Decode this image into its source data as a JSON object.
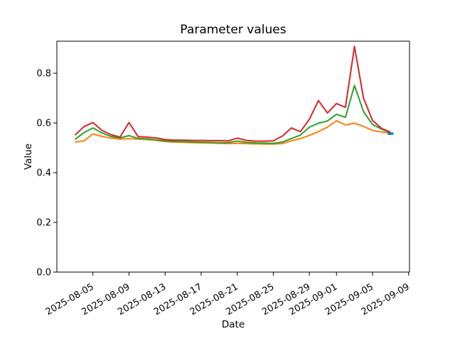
{
  "figure": {
    "background": "#ffffff",
    "text_color": "#000000"
  },
  "chart_data": {
    "type": "line",
    "title": "Parameter values",
    "xlabel": "Date",
    "ylabel": "Value",
    "grid": false,
    "legend": null,
    "ylim": [
      0,
      0.929
    ],
    "xlim_days": [
      -2,
      37.1
    ],
    "yticks": [
      "0.0",
      "0.2",
      "0.4",
      "0.6",
      "0.8"
    ],
    "xticks": [
      "2025-08-05",
      "2025-08-09",
      "2025-08-13",
      "2025-08-17",
      "2025-08-21",
      "2025-08-25",
      "2025-08-29",
      "2025-09-01",
      "2025-09-05",
      "2025-09-09"
    ],
    "x": [
      "2025-08-03",
      "2025-08-04",
      "2025-08-05",
      "2025-08-06",
      "2025-08-07",
      "2025-08-08",
      "2025-08-09",
      "2025-08-10",
      "2025-08-11",
      "2025-08-12",
      "2025-08-13",
      "2025-08-14",
      "2025-08-15",
      "2025-08-16",
      "2025-08-17",
      "2025-08-18",
      "2025-08-19",
      "2025-08-20",
      "2025-08-21",
      "2025-08-22",
      "2025-08-23",
      "2025-08-24",
      "2025-08-25",
      "2025-08-26",
      "2025-08-27",
      "2025-08-28",
      "2025-08-29",
      "2025-08-30",
      "2025-08-31",
      "2025-09-01",
      "2025-09-02",
      "2025-09-03",
      "2025-09-04",
      "2025-09-05",
      "2025-09-06",
      "2025-09-07"
    ],
    "series": [
      {
        "name": "orange",
        "color": "#ff7f0e",
        "values": [
          0.523,
          0.528,
          0.556,
          0.546,
          0.539,
          0.535,
          0.537,
          0.535,
          0.533,
          0.53,
          0.525,
          0.523,
          0.522,
          0.521,
          0.52,
          0.519,
          0.518,
          0.517,
          0.518,
          0.517,
          0.516,
          0.515,
          0.515,
          0.517,
          0.528,
          0.537,
          0.55,
          0.565,
          0.583,
          0.609,
          0.592,
          0.599,
          0.586,
          0.57,
          0.564,
          0.558
        ]
      },
      {
        "name": "green",
        "color": "#2ca02c",
        "values": [
          0.534,
          0.561,
          0.58,
          0.56,
          0.546,
          0.54,
          0.549,
          0.538,
          0.536,
          0.532,
          0.528,
          0.526,
          0.525,
          0.524,
          0.523,
          0.522,
          0.521,
          0.521,
          0.527,
          0.522,
          0.52,
          0.519,
          0.518,
          0.523,
          0.537,
          0.551,
          0.583,
          0.599,
          0.608,
          0.635,
          0.623,
          0.751,
          0.646,
          0.594,
          0.575,
          0.56
        ]
      },
      {
        "name": "red",
        "color": "#d62728",
        "values": [
          0.551,
          0.585,
          0.602,
          0.57,
          0.553,
          0.543,
          0.602,
          0.545,
          0.543,
          0.54,
          0.533,
          0.531,
          0.531,
          0.53,
          0.53,
          0.529,
          0.529,
          0.528,
          0.539,
          0.53,
          0.527,
          0.527,
          0.528,
          0.547,
          0.58,
          0.565,
          0.615,
          0.69,
          0.64,
          0.678,
          0.663,
          0.908,
          0.7,
          0.61,
          0.578,
          0.563
        ]
      },
      {
        "name": "blue",
        "color": "#1f77b4",
        "values": [
          null,
          null,
          null,
          null,
          null,
          null,
          null,
          null,
          null,
          null,
          null,
          null,
          null,
          null,
          null,
          null,
          null,
          null,
          null,
          null,
          null,
          null,
          null,
          null,
          null,
          null,
          null,
          null,
          null,
          null,
          null,
          null,
          null,
          null,
          null,
          0.557
        ]
      }
    ]
  }
}
